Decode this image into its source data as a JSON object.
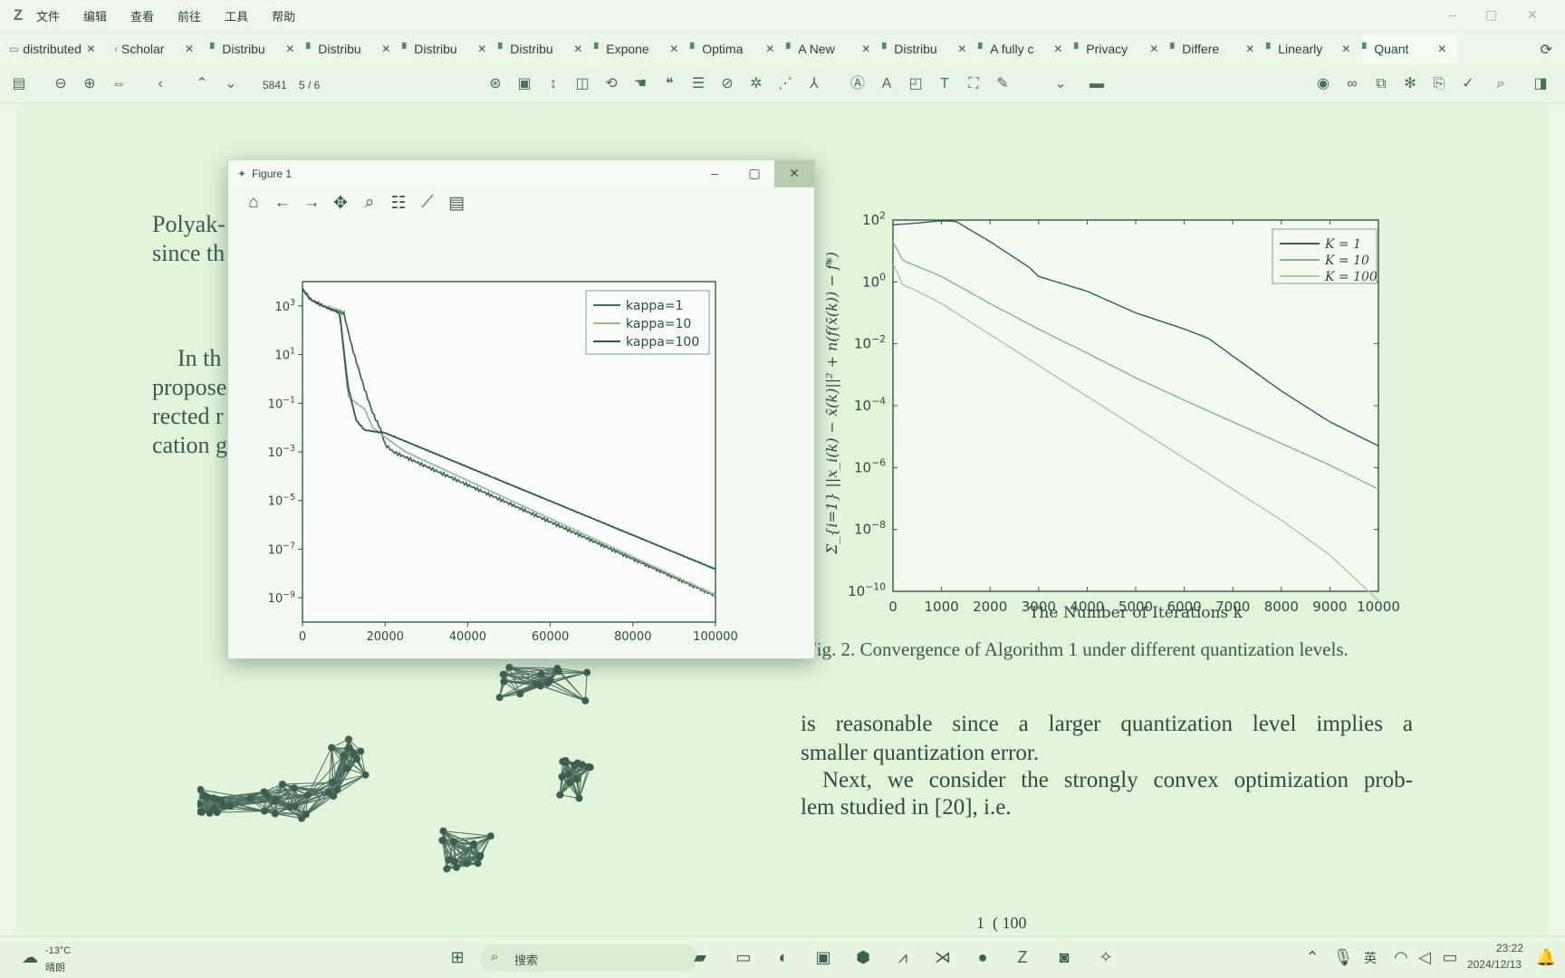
{
  "app": {
    "logo": "Z",
    "menu": [
      "文件",
      "编辑",
      "查看",
      "前往",
      "工具",
      "帮助"
    ],
    "window_controls": [
      "–",
      "▢",
      "✕"
    ]
  },
  "tabs": [
    {
      "label": "distributed",
      "icon": "folder-icon"
    },
    {
      "label": "Scholar",
      "icon": "chevron-left-icon"
    },
    {
      "label": "Distribu",
      "icon": "pdf-icon"
    },
    {
      "label": "Distribu",
      "icon": "pdf-icon"
    },
    {
      "label": "Distribu",
      "icon": "pdf-icon"
    },
    {
      "label": "Distribu",
      "icon": "pdf-icon"
    },
    {
      "label": "Expone",
      "icon": "pdf-icon"
    },
    {
      "label": "Optima",
      "icon": "pdf-icon"
    },
    {
      "label": "A New",
      "icon": "pdf-icon"
    },
    {
      "label": "Distribu",
      "icon": "pdf-icon"
    },
    {
      "label": "A fully c",
      "icon": "pdf-icon"
    },
    {
      "label": "Privacy",
      "icon": "pdf-icon"
    },
    {
      "label": "Differe",
      "icon": "pdf-icon"
    },
    {
      "label": "Linearly",
      "icon": "pdf-icon"
    },
    {
      "label": "Quant",
      "icon": "pdf-icon",
      "active": true
    }
  ],
  "toolbar": {
    "page_number": "5841",
    "page_count": "5 / 6"
  },
  "document": {
    "left_fragments": [
      "Polyak-",
      "since th",
      "In th",
      "propose",
      "rected r",
      "cation g"
    ],
    "caption": "Fig. 2.   Convergence of Algorithm 1 under different quantization levels.",
    "para1_lines": [
      "is reasonable since a larger quantization level implies a",
      "smaller quantization error."
    ],
    "para2_lines": [
      "Next, we consider the strongly convex optimization prob-",
      "lem studied in [20], i.e."
    ],
    "formula_fragment": "100"
  },
  "figure_window": {
    "title": "Figure 1",
    "tools": [
      "home-icon",
      "back-icon",
      "forward-icon",
      "pan-icon",
      "zoom-icon",
      "configure-icon",
      "edit-axis-icon",
      "save-icon"
    ]
  },
  "chart_data": [
    {
      "type": "line",
      "title": "",
      "xlabel": "",
      "ylabel": "",
      "xlim": [
        0,
        100000
      ],
      "ylim": [
        1e-10,
        10000.0
      ],
      "yscale": "log",
      "x_ticks": [
        0,
        20000,
        40000,
        60000,
        80000,
        100000
      ],
      "y_ticks": [
        "10^3",
        "10^1",
        "10^-1",
        "10^-3",
        "10^-5",
        "10^-7",
        "10^-9"
      ],
      "legend_position": "top-right",
      "series": [
        {
          "name": "kappa=1",
          "color": "#46695c",
          "x": [
            0,
            2000,
            5000,
            10000,
            12000,
            15000,
            17000,
            19000,
            20000,
            22000,
            25000,
            100000
          ],
          "y": [
            5000,
            1800,
            1000,
            500,
            20,
            0.4,
            0.04,
            0.008,
            0.002,
            0.001,
            0.0006,
            1.2e-09
          ]
        },
        {
          "name": "kappa=10",
          "color": "#9ab99a",
          "x": [
            0,
            2000,
            5000,
            9000,
            11000,
            13000,
            15000,
            17000,
            20000,
            25000,
            100000
          ],
          "y": [
            5000,
            1800,
            1000,
            700,
            0.2,
            0.1,
            0.06,
            0.01,
            0.004,
            0.001,
            1.3e-09
          ]
        },
        {
          "name": "kappa=100",
          "color": "#2f5a48",
          "x": [
            0,
            2000,
            5000,
            9000,
            11000,
            13000,
            15000,
            17000,
            20000,
            100000
          ],
          "y": [
            5000,
            1800,
            1000,
            500,
            0.5,
            0.02,
            0.008,
            0.007,
            0.006,
            1.5e-08
          ]
        }
      ]
    },
    {
      "type": "line",
      "title": "",
      "xlabel": "The Number of Iterations k",
      "ylabel": "Σ_{i=1} ||x_i(k) − x̄(k)||² + n(f(x̄(k)) − f*)",
      "xlim": [
        0,
        10000
      ],
      "ylim": [
        1e-10,
        100.0
      ],
      "yscale": "log",
      "x_ticks": [
        0,
        1000,
        2000,
        3000,
        4000,
        5000,
        6000,
        7000,
        8000,
        9000,
        10000
      ],
      "y_ticks": [
        "10^2",
        "10^0",
        "10^-2",
        "10^-4",
        "10^-6",
        "10^-8",
        "10^-10"
      ],
      "legend_position": "top-right",
      "series": [
        {
          "name": "K = 1",
          "color": "#355e4d",
          "x": [
            0,
            500,
            1000,
            1300,
            2000,
            2800,
            3000,
            4000,
            5000,
            6000,
            6500,
            7000,
            8000,
            9000,
            10000
          ],
          "y": [
            70,
            80,
            95,
            90,
            20,
            3,
            1.5,
            0.5,
            0.1,
            0.03,
            0.015,
            0.004,
            0.0003,
            3e-05,
            5e-06
          ]
        },
        {
          "name": "K = 10",
          "color": "#8cb08d",
          "x": [
            0,
            200,
            1000,
            2000,
            3000,
            4000,
            5000,
            6000,
            7000,
            8000,
            9000,
            10000
          ],
          "y": [
            20,
            5,
            1.5,
            0.2,
            0.03,
            0.005,
            0.0008,
            0.00015,
            3e-05,
            6e-06,
            1.2e-06,
            2e-07
          ]
        },
        {
          "name": "K = 100",
          "color": "#a9c7a3",
          "x": [
            0,
            200,
            400,
            1000,
            2000,
            3000,
            4000,
            5000,
            6000,
            7000,
            8000,
            9000,
            10000
          ],
          "y": [
            4,
            0.8,
            0.6,
            0.2,
            0.02,
            0.002,
            0.0002,
            2e-05,
            2e-06,
            2e-07,
            2e-08,
            1.5e-09,
            5e-11
          ]
        }
      ]
    }
  ],
  "taskbar": {
    "weather_temp": "-13°C",
    "weather_desc": "晴朗",
    "search_placeholder": "搜索",
    "ime": "英",
    "time": "23:22",
    "date": "2024/12/13"
  },
  "colors": {
    "page_bg": "#e2f4dc",
    "ui_bg": "#eef7ea",
    "axis": "#3c6a57"
  }
}
